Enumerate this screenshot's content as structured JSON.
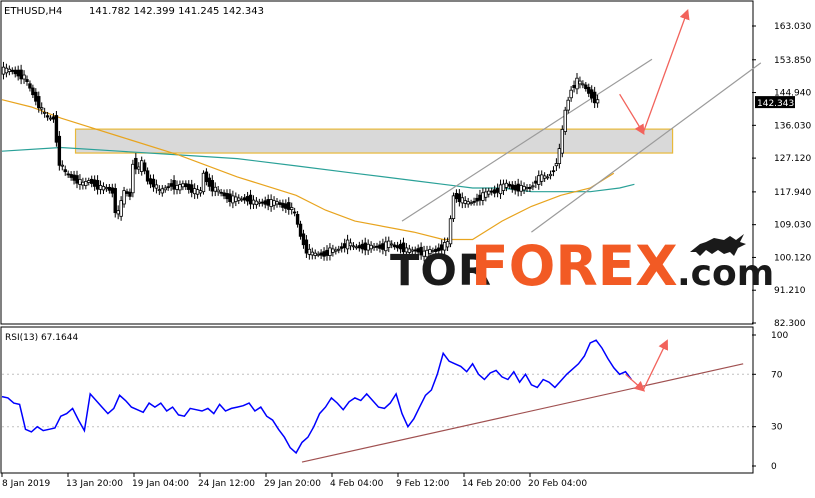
{
  "chart_data": [
    {
      "type": "candlestick",
      "symbol_label": "ETHUSD,H4",
      "ohlc_label": "141.782 142.399 141.245 142.343",
      "last_price": "142.343",
      "y_ticks": [
        "163.030",
        "153.850",
        "144.940",
        "136.030",
        "127.120",
        "117.940",
        "109.030",
        "100.120",
        "91.210",
        "82.300"
      ],
      "y_tick_values": [
        163.03,
        153.85,
        144.94,
        136.03,
        127.12,
        117.94,
        109.03,
        100.12,
        91.21,
        82.3
      ],
      "x_ticks": [
        "8 Jan 2019",
        "13 Jan 20:00",
        "19 Jan 04:00",
        "24 Jan 12:00",
        "29 Jan 20:00",
        "4 Feb 04:00",
        "9 Feb 12:00",
        "14 Feb 20:00",
        "20 Feb 04:00"
      ],
      "ylim": [
        82.3,
        168
      ],
      "price_series": [
        [
          0,
          151
        ],
        [
          3,
          151
        ],
        [
          6,
          150
        ],
        [
          8,
          149
        ],
        [
          10,
          146
        ],
        [
          12,
          143
        ],
        [
          14,
          140
        ],
        [
          16,
          138
        ],
        [
          18,
          138
        ],
        [
          19,
          132
        ],
        [
          20,
          126
        ],
        [
          22,
          123
        ],
        [
          24,
          122
        ],
        [
          26,
          121
        ],
        [
          28,
          120
        ],
        [
          30,
          121
        ],
        [
          32,
          120
        ],
        [
          34,
          119
        ],
        [
          36,
          119
        ],
        [
          38,
          118
        ],
        [
          39,
          113
        ],
        [
          40,
          112
        ],
        [
          42,
          118
        ],
        [
          44,
          117
        ],
        [
          45,
          126
        ],
        [
          47,
          124
        ],
        [
          48,
          126
        ],
        [
          50,
          121
        ],
        [
          52,
          120
        ],
        [
          54,
          118
        ],
        [
          56,
          119
        ],
        [
          58,
          120
        ],
        [
          60,
          119
        ],
        [
          62,
          120
        ],
        [
          64,
          119
        ],
        [
          66,
          118
        ],
        [
          68,
          118
        ],
        [
          69,
          123
        ],
        [
          70,
          121
        ],
        [
          72,
          119
        ],
        [
          74,
          118
        ],
        [
          76,
          117
        ],
        [
          78,
          116
        ],
        [
          80,
          116
        ],
        [
          82,
          116
        ],
        [
          84,
          116
        ],
        [
          86,
          115
        ],
        [
          88,
          115
        ],
        [
          90,
          115
        ],
        [
          92,
          115
        ],
        [
          94,
          115
        ],
        [
          96,
          114
        ],
        [
          98,
          114
        ],
        [
          100,
          112
        ],
        [
          102,
          106
        ],
        [
          104,
          102
        ],
        [
          106,
          101
        ],
        [
          108,
          101
        ],
        [
          110,
          101
        ],
        [
          112,
          102
        ],
        [
          114,
          102
        ],
        [
          116,
          103
        ],
        [
          118,
          104
        ],
        [
          120,
          103
        ],
        [
          122,
          103
        ],
        [
          124,
          103
        ],
        [
          126,
          103
        ],
        [
          128,
          103
        ],
        [
          130,
          103
        ],
        [
          132,
          104
        ],
        [
          134,
          103
        ],
        [
          136,
          103
        ],
        [
          138,
          102
        ],
        [
          140,
          102
        ],
        [
          142,
          102
        ],
        [
          144,
          101
        ],
        [
          146,
          102
        ],
        [
          148,
          102
        ],
        [
          150,
          103
        ],
        [
          152,
          104
        ],
        [
          154,
          117
        ],
        [
          156,
          116
        ],
        [
          158,
          115
        ],
        [
          160,
          115
        ],
        [
          162,
          116
        ],
        [
          164,
          117
        ],
        [
          166,
          118
        ],
        [
          168,
          118
        ],
        [
          170,
          119
        ],
        [
          172,
          120
        ],
        [
          174,
          119
        ],
        [
          176,
          119
        ],
        [
          178,
          119
        ],
        [
          180,
          119
        ],
        [
          182,
          121
        ],
        [
          184,
          122
        ],
        [
          186,
          122
        ],
        [
          188,
          124
        ],
        [
          190,
          129
        ],
        [
          192,
          140
        ],
        [
          194,
          146
        ],
        [
          196,
          148
        ],
        [
          198,
          147
        ],
        [
          200,
          145
        ],
        [
          202,
          143
        ],
        [
          203,
          142.3
        ]
      ],
      "channel_lines": [
        [
          [
            136,
            110
          ],
          [
            221,
            154
          ]
        ],
        [
          [
            180,
            107
          ],
          [
            258,
            153
          ]
        ]
      ],
      "channel_mid": [
        [
          136,
          110
        ],
        [
          197,
          144
        ]
      ],
      "ma_slow": [
        [
          0,
          129
        ],
        [
          20,
          130
        ],
        [
          40,
          129
        ],
        [
          60,
          128
        ],
        [
          80,
          127
        ],
        [
          100,
          125
        ],
        [
          120,
          123
        ],
        [
          140,
          121
        ],
        [
          150,
          120
        ],
        [
          160,
          119
        ],
        [
          170,
          119
        ],
        [
          180,
          118
        ],
        [
          190,
          118
        ],
        [
          200,
          118
        ],
        [
          210,
          119
        ],
        [
          215,
          120
        ]
      ],
      "ma_fast": [
        [
          0,
          143
        ],
        [
          10,
          141
        ],
        [
          20,
          138
        ],
        [
          40,
          133
        ],
        [
          60,
          128
        ],
        [
          80,
          122
        ],
        [
          100,
          117
        ],
        [
          110,
          113
        ],
        [
          120,
          110
        ],
        [
          140,
          107
        ],
        [
          150,
          105
        ],
        [
          160,
          105
        ],
        [
          170,
          110
        ],
        [
          180,
          114
        ],
        [
          190,
          117
        ],
        [
          200,
          119
        ],
        [
          208,
          123
        ]
      ],
      "zone": [
        25,
        228,
        128.5,
        135
      ],
      "forecast_arrows": [
        [
          [
            210,
            144.5
          ],
          [
            218,
            134
          ]
        ],
        [
          [
            218,
            134
          ],
          [
            233,
            167
          ]
        ]
      ],
      "colors": {
        "price": "#000000",
        "bull_fill": "#ffffff",
        "ma_slow": "#2aa198",
        "ma_fast": "#e8a41e",
        "zone_fill": "#d9d9d9",
        "zone_border": "#e8b93a",
        "arrow": "#f2635c",
        "channel": "#9b9b9b"
      }
    },
    {
      "type": "line",
      "label": "RSI(13) 67.1644",
      "y_ticks": [
        "100",
        "70",
        "30",
        "0"
      ],
      "y_tick_values": [
        100,
        70,
        30,
        0
      ],
      "ylim": [
        0,
        100
      ],
      "series": [
        [
          0,
          53
        ],
        [
          2,
          52
        ],
        [
          4,
          48
        ],
        [
          6,
          47
        ],
        [
          8,
          28
        ],
        [
          10,
          26
        ],
        [
          12,
          30
        ],
        [
          14,
          27
        ],
        [
          16,
          28
        ],
        [
          18,
          29
        ],
        [
          20,
          38
        ],
        [
          22,
          40
        ],
        [
          24,
          44
        ],
        [
          26,
          35
        ],
        [
          28,
          27
        ],
        [
          30,
          55
        ],
        [
          32,
          50
        ],
        [
          34,
          45
        ],
        [
          36,
          40
        ],
        [
          38,
          44
        ],
        [
          40,
          54
        ],
        [
          42,
          50
        ],
        [
          44,
          45
        ],
        [
          46,
          43
        ],
        [
          48,
          41
        ],
        [
          50,
          48
        ],
        [
          52,
          45
        ],
        [
          54,
          48
        ],
        [
          56,
          42
        ],
        [
          58,
          45
        ],
        [
          60,
          39
        ],
        [
          62,
          38
        ],
        [
          64,
          44
        ],
        [
          66,
          43
        ],
        [
          68,
          42
        ],
        [
          70,
          44
        ],
        [
          72,
          40
        ],
        [
          74,
          47
        ],
        [
          76,
          42
        ],
        [
          78,
          44
        ],
        [
          80,
          45
        ],
        [
          82,
          46
        ],
        [
          84,
          48
        ],
        [
          86,
          42
        ],
        [
          88,
          45
        ],
        [
          90,
          38
        ],
        [
          92,
          35
        ],
        [
          94,
          28
        ],
        [
          96,
          22
        ],
        [
          98,
          14
        ],
        [
          100,
          10
        ],
        [
          102,
          18
        ],
        [
          104,
          22
        ],
        [
          106,
          30
        ],
        [
          108,
          40
        ],
        [
          110,
          45
        ],
        [
          112,
          52
        ],
        [
          114,
          48
        ],
        [
          116,
          43
        ],
        [
          118,
          49
        ],
        [
          120,
          52
        ],
        [
          122,
          50
        ],
        [
          124,
          55
        ],
        [
          126,
          50
        ],
        [
          128,
          45
        ],
        [
          130,
          44
        ],
        [
          132,
          48
        ],
        [
          134,
          55
        ],
        [
          136,
          40
        ],
        [
          138,
          30
        ],
        [
          140,
          36
        ],
        [
          142,
          45
        ],
        [
          144,
          54
        ],
        [
          146,
          58
        ],
        [
          148,
          70
        ],
        [
          150,
          86
        ],
        [
          152,
          80
        ],
        [
          154,
          78
        ],
        [
          156,
          76
        ],
        [
          158,
          72
        ],
        [
          160,
          78
        ],
        [
          162,
          70
        ],
        [
          164,
          66
        ],
        [
          166,
          71
        ],
        [
          168,
          73
        ],
        [
          170,
          68
        ],
        [
          172,
          66
        ],
        [
          174,
          72
        ],
        [
          176,
          64
        ],
        [
          178,
          70
        ],
        [
          180,
          62
        ],
        [
          182,
          60
        ],
        [
          184,
          66
        ],
        [
          186,
          64
        ],
        [
          188,
          60
        ],
        [
          190,
          65
        ],
        [
          192,
          70
        ],
        [
          194,
          74
        ],
        [
          196,
          78
        ],
        [
          198,
          84
        ],
        [
          200,
          94
        ],
        [
          202,
          96
        ],
        [
          204,
          90
        ],
        [
          206,
          82
        ],
        [
          208,
          75
        ],
        [
          210,
          70
        ],
        [
          212,
          72
        ],
        [
          214,
          66
        ]
      ],
      "trendline": [
        [
          102,
          3
        ],
        [
          252,
          78
        ]
      ],
      "forecast_arrows": [
        [
          [
            212,
            70
          ],
          [
            218,
            58
          ]
        ],
        [
          [
            218,
            58
          ],
          [
            226,
            95
          ]
        ]
      ],
      "colors": {
        "line": "#0000ff",
        "trend": "#a05050",
        "arrow": "#f2635c"
      }
    }
  ],
  "watermark": {
    "part1": "TOR",
    "part2": "FOREX",
    "part3": ".com"
  }
}
